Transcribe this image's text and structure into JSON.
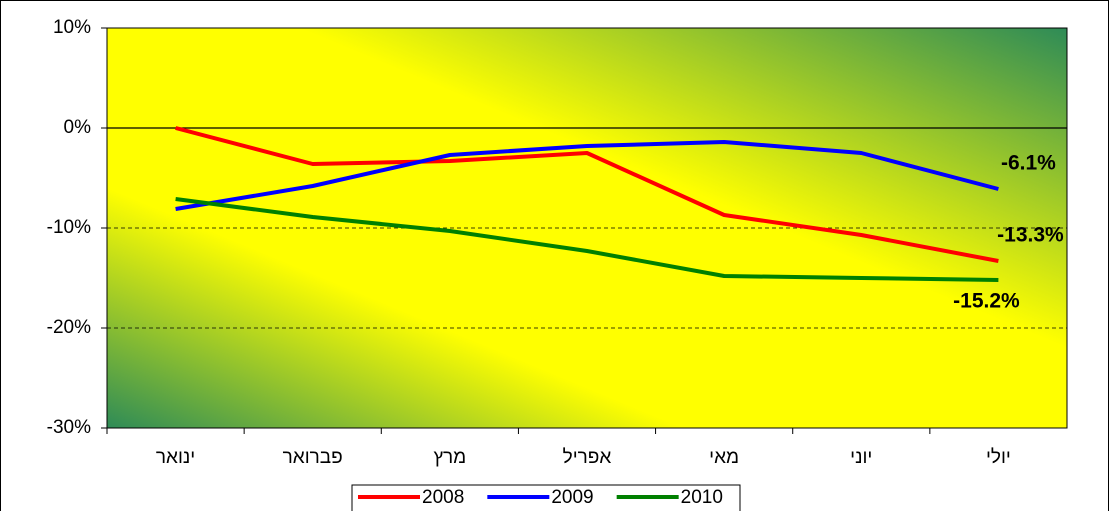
{
  "chart_data": {
    "type": "line",
    "categories": [
      "ינואר",
      "פברואר",
      "מרץ",
      "אפריל",
      "מאי",
      "יוני",
      "יולי"
    ],
    "series": [
      {
        "name": "2008",
        "color": "#ff0000",
        "values": [
          0,
          -3.6,
          -3.3,
          -2.5,
          -8.7,
          -10.7,
          -13.3
        ],
        "value_labels": [
          null,
          null,
          null,
          null,
          null,
          null,
          "-13.3%"
        ]
      },
      {
        "name": "2009",
        "color": "#0000ff",
        "values": [
          -8.1,
          -5.8,
          -2.7,
          -1.8,
          -1.4,
          -2.5,
          -6.1
        ],
        "value_labels": [
          null,
          null,
          null,
          null,
          null,
          null,
          "-6.1%"
        ]
      },
      {
        "name": "2010",
        "color": "#008000",
        "values": [
          -7.1,
          -8.9,
          -10.3,
          -12.3,
          -14.8,
          -15.0,
          -15.2
        ],
        "value_labels": [
          null,
          null,
          null,
          null,
          null,
          null,
          "-15.2%"
        ]
      }
    ],
    "ylim": [
      -30,
      10
    ],
    "yticks": [
      {
        "value": -30,
        "label": "-30%"
      },
      {
        "value": -20,
        "label": "-20%"
      },
      {
        "value": -10,
        "label": "-10%"
      },
      {
        "value": 0,
        "label": "0%"
      },
      {
        "value": 10,
        "label": "10%"
      }
    ],
    "grid": true,
    "legend": "bottom"
  }
}
